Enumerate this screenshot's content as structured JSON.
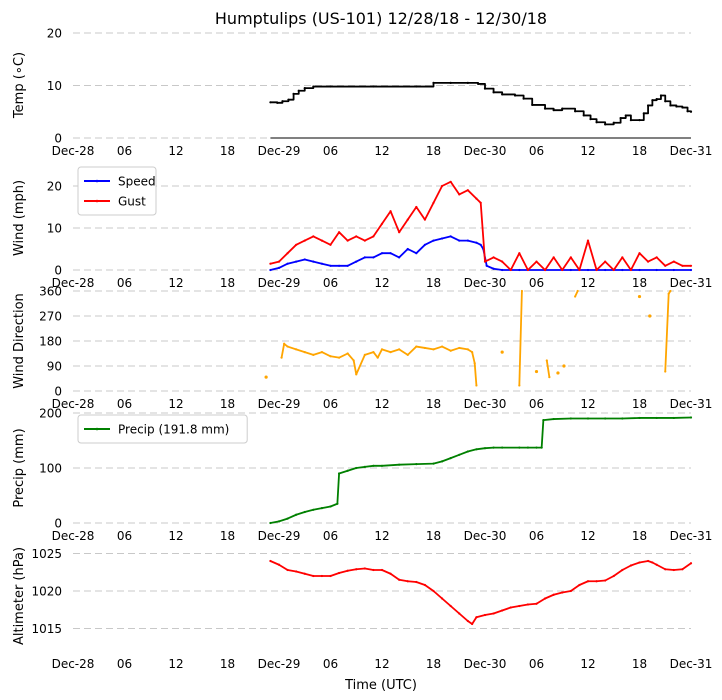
{
  "chart_data": {
    "type": "line",
    "title": "Humptulips (US-101) 12/28/18 - 12/30/18",
    "xlabel": "Time (UTC)",
    "x_range_hours": [
      0,
      72
    ],
    "x_ticks": [
      {
        "h": 0,
        "label": "Dec-28"
      },
      {
        "h": 6,
        "label": "06"
      },
      {
        "h": 12,
        "label": "12"
      },
      {
        "h": 18,
        "label": "18"
      },
      {
        "h": 24,
        "label": "Dec-29"
      },
      {
        "h": 30,
        "label": "06"
      },
      {
        "h": 36,
        "label": "12"
      },
      {
        "h": 42,
        "label": "18"
      },
      {
        "h": 48,
        "label": "Dec-30"
      },
      {
        "h": 54,
        "label": "06"
      },
      {
        "h": 60,
        "label": "12"
      },
      {
        "h": 66,
        "label": "18"
      },
      {
        "h": 72,
        "label": "Dec-31"
      }
    ],
    "panels": [
      {
        "id": "temp",
        "ylabel": "Temp ($^\\circ$C)",
        "ylabel_display": "Temp (∘C)",
        "ylim": [
          0,
          20
        ],
        "yticks": [
          0,
          10,
          20
        ],
        "series": [
          {
            "name": "Temp",
            "color": "#000000",
            "kind": "step",
            "x": [
              23.0,
              23.8,
              24.4,
              25.1,
              25.7,
              26.3,
              27.0,
              28.0,
              30.0,
              35.0,
              40.0,
              42.0,
              44.0,
              46.0,
              47.2,
              48.0,
              49.0,
              50.0,
              51.5,
              52.5,
              53.5,
              55.0,
              56.0,
              57.0,
              58.5,
              59.5,
              60.3,
              61.0,
              62.0,
              63.0,
              63.8,
              64.4,
              65.0,
              66.0,
              66.5,
              67.0,
              67.5,
              68.0,
              68.5,
              69.0,
              69.6,
              70.3,
              71.0,
              71.6,
              72.0
            ],
            "y": [
              6.8,
              6.7,
              7.0,
              7.3,
              8.4,
              9.0,
              9.5,
              9.8,
              9.8,
              9.8,
              9.8,
              10.5,
              10.5,
              10.5,
              10.3,
              9.4,
              8.7,
              8.3,
              8.1,
              7.5,
              6.3,
              5.6,
              5.3,
              5.6,
              5.1,
              4.3,
              3.6,
              3.0,
              2.6,
              2.9,
              3.8,
              4.3,
              3.4,
              3.4,
              4.7,
              6.2,
              7.2,
              7.4,
              8.1,
              7.0,
              6.2,
              6.0,
              5.8,
              5.1,
              5.0
            ]
          }
        ],
        "baseline": {
          "x": [
            23.0,
            72.0
          ],
          "y": [
            0,
            0
          ],
          "color": "#000000"
        }
      },
      {
        "id": "wind",
        "ylabel": "Wind (mph)",
        "ylim": [
          0,
          25
        ],
        "yticks": [
          0,
          10,
          20
        ],
        "legend": {
          "placement": "upper-left",
          "entries": [
            {
              "name": "Speed",
              "color": "#0000ff"
            },
            {
              "name": "Gust",
              "color": "#ff0000"
            }
          ]
        },
        "series": [
          {
            "name": "Speed",
            "color": "#0000ff",
            "kind": "line",
            "x": [
              23,
              24,
              25,
              26,
              27,
              28,
              29,
              30,
              31,
              32,
              33,
              34,
              35,
              36,
              37,
              38,
              39,
              40,
              41,
              42,
              43,
              44,
              45,
              46,
              47,
              47.5,
              47.8,
              48.2,
              49,
              50,
              52,
              55,
              58,
              60,
              62,
              64,
              66,
              68,
              70,
              72
            ],
            "y": [
              0,
              0.5,
              1.5,
              2,
              2.5,
              2,
              1.5,
              1,
              1,
              1,
              2,
              3,
              3,
              4,
              4,
              3,
              5,
              4,
              6,
              7,
              7.5,
              8,
              7,
              7,
              6.5,
              6,
              5,
              1,
              0.3,
              0,
              0,
              0,
              0,
              0,
              0,
              0,
              0,
              0,
              0,
              0
            ]
          },
          {
            "name": "Gust",
            "color": "#ff0000",
            "kind": "line",
            "x": [
              23,
              24,
              25,
              26,
              27,
              28,
              29,
              30,
              31,
              32,
              33,
              34,
              35,
              36,
              37,
              38,
              39,
              40,
              41,
              42,
              43,
              44,
              45,
              46,
              47,
              47.5,
              48,
              49,
              50,
              51,
              52,
              53,
              54,
              55,
              56,
              57,
              58,
              59,
              60,
              61,
              62,
              63,
              64,
              65,
              66,
              67,
              68,
              69,
              70,
              71,
              72
            ],
            "y": [
              1.5,
              2,
              4,
              6,
              7,
              8,
              7,
              6,
              9,
              7,
              8,
              7,
              8,
              11,
              14,
              9,
              12,
              15,
              12,
              16,
              20,
              21,
              18,
              19,
              17,
              16,
              2,
              3,
              2,
              0,
              4,
              0,
              2,
              0,
              3,
              0,
              3,
              0,
              7,
              0,
              2,
              0,
              3,
              0,
              4,
              2,
              3,
              1,
              2,
              1,
              1
            ]
          }
        ]
      },
      {
        "id": "dir",
        "ylabel": "Wind Direction",
        "ylim": [
          0,
          360
        ],
        "yticks": [
          0,
          90,
          180,
          270,
          360
        ],
        "series": [
          {
            "name": "Direction",
            "color": "#ffa500",
            "kind": "line",
            "x": [
              24.3,
              24.6,
              25,
              26,
              27,
              28,
              29,
              30,
              31,
              32,
              32.7,
              33,
              34,
              35,
              35.5,
              36,
              37,
              38,
              39,
              40,
              41,
              42,
              43,
              44,
              45,
              46,
              46.5,
              46.8,
              47
            ],
            "y": [
              120,
              170,
              160,
              150,
              140,
              130,
              140,
              125,
              120,
              135,
              110,
              60,
              130,
              140,
              120,
              150,
              140,
              150,
              130,
              160,
              155,
              150,
              160,
              145,
              155,
              150,
              140,
              100,
              20
            ]
          },
          {
            "name": "Direction-b",
            "color": "#ffa500",
            "kind": "line",
            "x": [
              52.0,
              52.3
            ],
            "y": [
              20,
              360
            ]
          },
          {
            "name": "Direction-c",
            "color": "#ffa500",
            "kind": "line",
            "x": [
              55.2,
              55.5
            ],
            "y": [
              110,
              50
            ]
          },
          {
            "name": "Direction-d",
            "color": "#ffa500",
            "kind": "line",
            "x": [
              58.5,
              58.8
            ],
            "y": [
              340,
              360
            ]
          },
          {
            "name": "Direction-e",
            "color": "#ffa500",
            "kind": "line",
            "x": [
              69.0,
              69.4,
              69.6
            ],
            "y": [
              70,
              350,
              360
            ]
          },
          {
            "name": "Direction-points",
            "color": "#ffa500",
            "kind": "points",
            "x": [
              22.5,
              50.0,
              54.0,
              56.5,
              57.2,
              66.0,
              67.2
            ],
            "y": [
              50,
              140,
              70,
              65,
              90,
              340,
              270
            ]
          }
        ]
      },
      {
        "id": "precip",
        "ylabel": "Precip (mm)",
        "ylim": [
          0,
          200
        ],
        "yticks": [
          0,
          100,
          200
        ],
        "legend": {
          "placement": "upper-left",
          "entries": [
            {
              "name": "Precip (191.8 mm)",
              "color": "#008000"
            }
          ]
        },
        "series": [
          {
            "name": "Precip (191.8 mm)",
            "color": "#008000",
            "kind": "line",
            "x": [
              23,
              24,
              25,
              26,
              27,
              28,
              29,
              30,
              30.8,
              31,
              32,
              33,
              34,
              35,
              36,
              38,
              40,
              42,
              43,
              44,
              45,
              46,
              47,
              48,
              49,
              50,
              52,
              53,
              54,
              54.6,
              54.8,
              56,
              58,
              60,
              62,
              64,
              66,
              68,
              70,
              72
            ],
            "y": [
              0,
              3,
              8,
              15,
              20,
              24,
              27,
              30,
              35,
              90,
              95,
              100,
              102,
              104,
              104,
              106,
              107,
              108,
              112,
              118,
              124,
              130,
              134,
              136,
              137,
              137,
              137,
              137,
              137,
              137,
              187,
              189,
              190,
              190,
              190,
              190,
              191,
              191,
              191,
              191.8
            ]
          }
        ]
      },
      {
        "id": "alt",
        "ylabel": "Altimeter (hPa)",
        "ylim": [
          1012,
          1026
        ],
        "yticks": [
          1015,
          1020,
          1025
        ],
        "series": [
          {
            "name": "Altimeter",
            "color": "#ff0000",
            "kind": "line",
            "x": [
              23,
              24,
              25,
              26,
              27,
              28,
              29,
              30,
              31,
              32,
              33,
              34,
              35,
              36,
              37,
              38,
              39,
              40,
              41,
              42,
              43,
              44,
              45,
              46,
              46.5,
              47,
              48,
              49,
              50,
              51,
              52,
              53,
              54,
              55,
              56,
              57,
              58,
              59,
              60,
              61,
              62,
              63,
              64,
              65,
              66,
              67,
              67.5,
              68,
              69,
              70,
              71,
              72
            ],
            "y": [
              1024,
              1023.5,
              1022.8,
              1022.6,
              1022.3,
              1022,
              1022,
              1022,
              1022.4,
              1022.7,
              1022.9,
              1023,
              1022.8,
              1022.8,
              1022.3,
              1021.5,
              1021.3,
              1021.2,
              1020.8,
              1020,
              1019,
              1018,
              1017,
              1016,
              1015.6,
              1016.5,
              1016.8,
              1017,
              1017.4,
              1017.8,
              1018,
              1018.2,
              1018.3,
              1019,
              1019.5,
              1019.8,
              1020,
              1020.8,
              1021.3,
              1021.3,
              1021.4,
              1022,
              1022.8,
              1023.4,
              1023.8,
              1024,
              1023.8,
              1023.5,
              1022.9,
              1022.8,
              1022.9,
              1023.7
            ]
          }
        ]
      }
    ]
  }
}
